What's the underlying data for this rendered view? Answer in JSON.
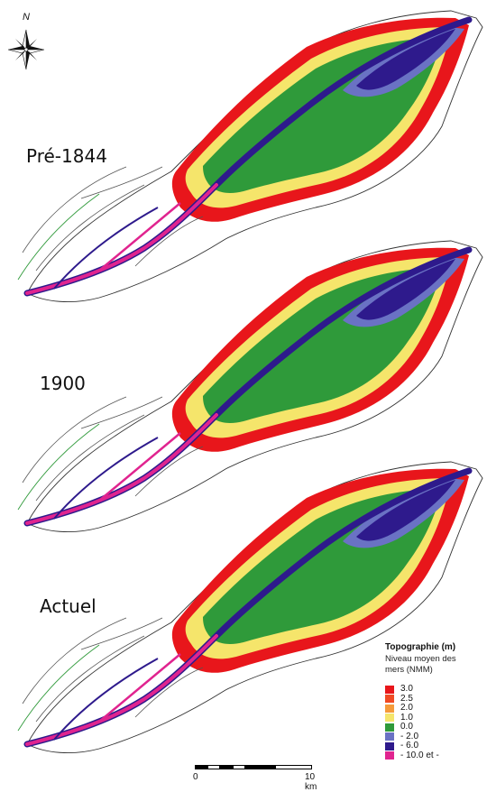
{
  "north_arrow": {
    "letter": "N",
    "icon": "compass-rose-icon"
  },
  "panels": [
    {
      "label": "Pré-1844"
    },
    {
      "label": "1900"
    },
    {
      "label": "Actuel"
    }
  ],
  "legend": {
    "title": "Topographie  (m)",
    "subtitle_line1": "Niveau moyen des",
    "subtitle_line2": "mers (NMM)",
    "items": [
      {
        "label": "3.0",
        "color": "#e8161b"
      },
      {
        "label": "2.5",
        "color": "#f04a24"
      },
      {
        "label": "2.0",
        "color": "#f59a3a"
      },
      {
        "label": "1.0",
        "color": "#f5e56b"
      },
      {
        "label": "0.0",
        "color": "#2f9a3a"
      },
      {
        "label": "- 2.0",
        "color": "#6a72c4"
      },
      {
        "label": "- 6.0",
        "color": "#2e1a8c"
      },
      {
        "label": "- 10.0 et -",
        "color": "#e0248f"
      }
    ]
  },
  "scale": {
    "start_label": "0",
    "end_label": "10 km"
  }
}
